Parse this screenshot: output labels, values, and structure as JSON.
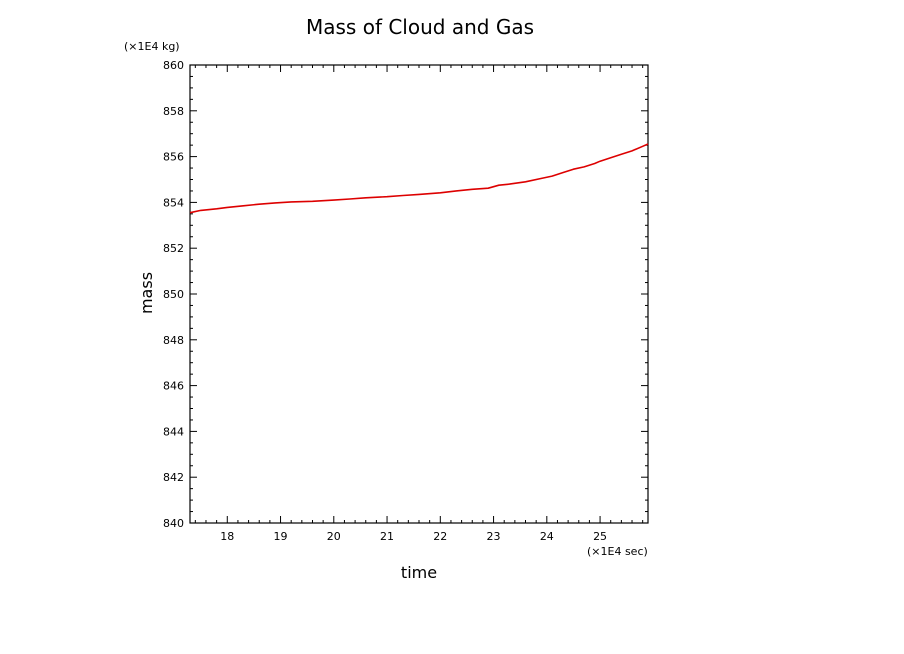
{
  "chart_data": {
    "type": "line",
    "title": "Mass of Cloud and Gas",
    "xlabel": "time",
    "ylabel": "mass",
    "x_unit": "(×1E4 sec)",
    "y_unit": "(×1E4 kg)",
    "xlim": [
      17.3,
      25.9
    ],
    "ylim": [
      840,
      860
    ],
    "x_ticks": [
      18,
      19,
      20,
      21,
      22,
      23,
      24,
      25
    ],
    "y_ticks": [
      840,
      842,
      844,
      846,
      848,
      850,
      852,
      854,
      856,
      858,
      860
    ],
    "x_tick_labels": [
      "18",
      "19",
      "20",
      "21",
      "22",
      "23",
      "24",
      "25"
    ],
    "y_tick_labels": [
      "840",
      "842",
      "844",
      "846",
      "848",
      "850",
      "852",
      "854",
      "856",
      "858",
      "860"
    ],
    "grid": false,
    "series": [
      {
        "color": "#dd0000",
        "x": [
          17.3,
          17.5,
          17.8,
          18.0,
          18.3,
          18.6,
          18.9,
          19.2,
          19.6,
          20.0,
          20.3,
          20.6,
          21.0,
          21.3,
          21.6,
          22.0,
          22.3,
          22.6,
          22.9,
          23.1,
          23.3,
          23.6,
          23.9,
          24.1,
          24.3,
          24.5,
          24.7,
          24.9,
          25.0,
          25.2,
          25.4,
          25.6,
          25.8,
          25.9
        ],
        "y": [
          853.55,
          853.65,
          853.72,
          853.78,
          853.85,
          853.92,
          853.98,
          854.02,
          854.05,
          854.1,
          854.15,
          854.2,
          854.25,
          854.3,
          854.35,
          854.42,
          854.5,
          854.57,
          854.62,
          854.75,
          854.8,
          854.9,
          855.05,
          855.15,
          855.3,
          855.45,
          855.55,
          855.7,
          855.8,
          855.95,
          856.1,
          856.25,
          856.45,
          856.55
        ]
      }
    ]
  }
}
